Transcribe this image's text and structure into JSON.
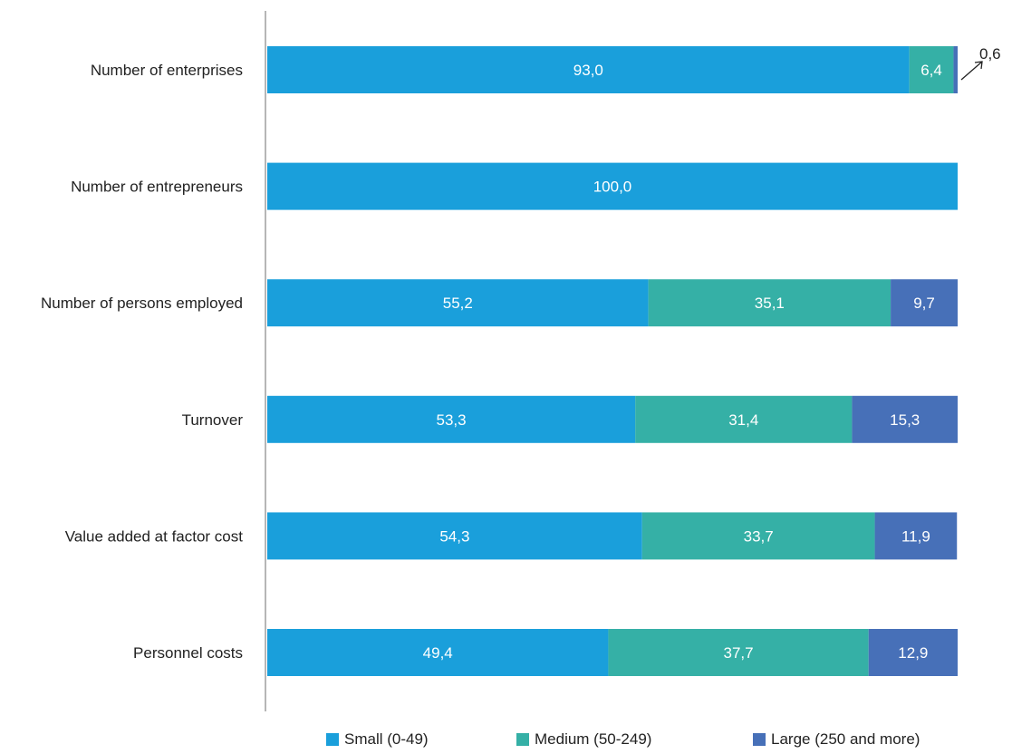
{
  "chart_data": {
    "type": "bar",
    "orientation": "horizontal",
    "stacked": true,
    "unit": "%",
    "categories": [
      "Number of enterprises",
      "Number of entrepreneurs",
      "Number of persons employed",
      "Turnover",
      "Value added at factor cost",
      "Personnel costs"
    ],
    "series": [
      {
        "name": "Small (0-49)",
        "color": "#1a9fdb",
        "values": [
          93.0,
          100.0,
          55.2,
          53.3,
          54.3,
          49.4
        ],
        "labels": [
          "93,0",
          "100,0",
          "55,2",
          "53,3",
          "54,3",
          "49,4"
        ]
      },
      {
        "name": "Medium (50-249)",
        "color": "#35b0a6",
        "values": [
          6.4,
          0,
          35.1,
          31.4,
          33.7,
          37.7
        ],
        "labels": [
          "6,4",
          "",
          "35,1",
          "31,4",
          "33,7",
          "37,7"
        ]
      },
      {
        "name": "Large (250 and more)",
        "color": "#4770b8",
        "values": [
          0.6,
          0,
          9.7,
          15.3,
          11.9,
          12.9
        ],
        "labels": [
          "",
          "",
          "9,7",
          "15,3",
          "11,9",
          "12,9"
        ]
      }
    ],
    "annotations": [
      {
        "category": "Number of enterprises",
        "series": "Large (250 and more)",
        "text": "0,6"
      }
    ],
    "xlim": [
      0,
      100
    ],
    "grid": false,
    "legend_position": "bottom"
  }
}
